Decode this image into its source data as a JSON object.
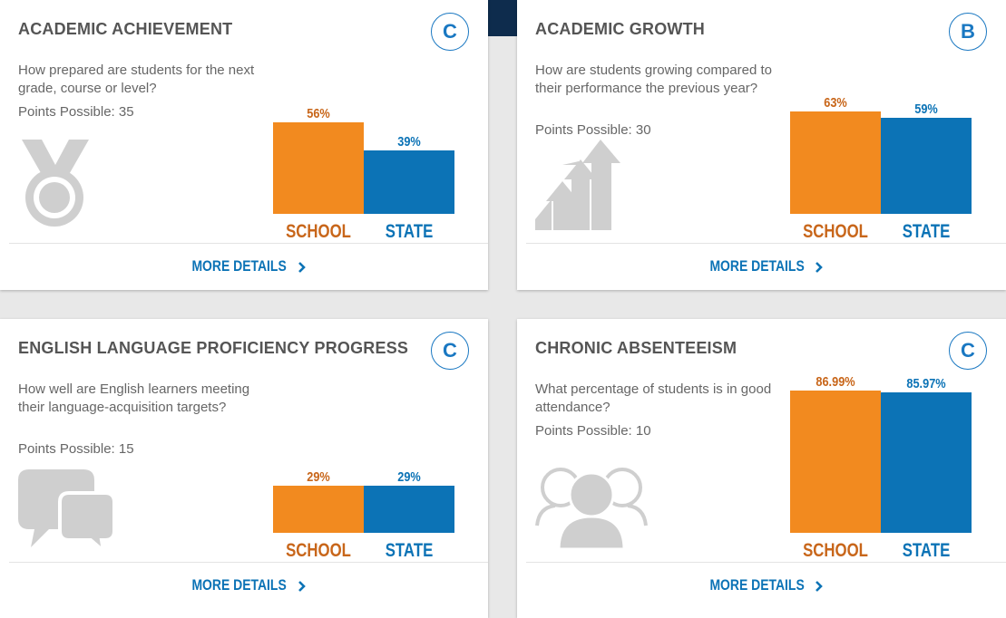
{
  "cards": [
    {
      "title": "ACADEMIC ACHIEVEMENT",
      "grade": "C",
      "question": "How prepared are students for the next grade, course or level?",
      "points": "Points Possible: 35",
      "icon": "medal-icon",
      "chart_data": {
        "type": "bar",
        "categories": [
          "SCHOOL",
          "STATE"
        ],
        "values": [
          56,
          39
        ],
        "value_labels": [
          "56%",
          "39%"
        ]
      },
      "more_label": "MORE DETAILS"
    },
    {
      "title": "ACADEMIC GROWTH",
      "grade": "B",
      "question": "How are students growing compared to their performance the previous year?",
      "points": "Points Possible: 30",
      "icon": "growth-arrows-icon",
      "chart_data": {
        "type": "bar",
        "categories": [
          "SCHOOL",
          "STATE"
        ],
        "values": [
          63,
          59
        ],
        "value_labels": [
          "63%",
          "59%"
        ]
      },
      "more_label": "MORE DETAILS"
    },
    {
      "title": "ENGLISH LANGUAGE PROFICIENCY PROGRESS",
      "grade": "C",
      "question": "How well are English learners meeting their language-acquisition targets?",
      "points": "Points Possible: 15",
      "icon": "speech-bubbles-icon",
      "chart_data": {
        "type": "bar",
        "categories": [
          "SCHOOL",
          "STATE"
        ],
        "values": [
          29,
          29
        ],
        "value_labels": [
          "29%",
          "29%"
        ]
      },
      "more_label": "MORE DETAILS"
    },
    {
      "title": "CHRONIC ABSENTEEISM",
      "grade": "C",
      "question": "What percentage of students is in good attendance?",
      "points": "Points Possible: 10",
      "icon": "people-group-icon",
      "chart_data": {
        "type": "bar",
        "categories": [
          "SCHOOL",
          "STATE"
        ],
        "values": [
          86.99,
          85.97
        ],
        "value_labels": [
          "86.99%",
          "85.97%"
        ]
      },
      "more_label": "MORE DETAILS"
    }
  ],
  "colors": {
    "school": "#f28a1f",
    "state": "#0c73b6",
    "school_text": "#c8661a",
    "grade_ring": "#1a78c2",
    "icon_gray": "#cfcfcf"
  }
}
